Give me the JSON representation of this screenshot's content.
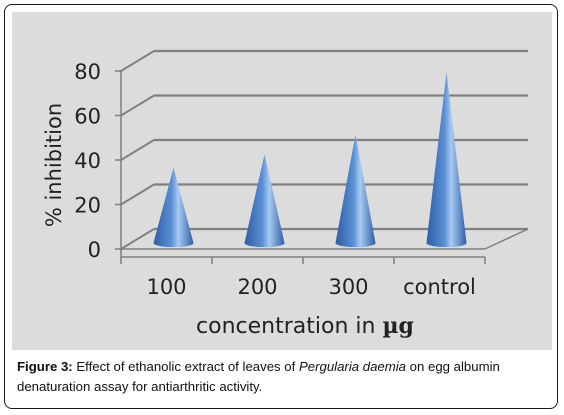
{
  "chart_data": {
    "type": "bar",
    "mark_shape": "cone",
    "categories": [
      "100",
      "200",
      "300",
      "control"
    ],
    "values": [
      33,
      39,
      48,
      76
    ],
    "xlabel": "concentration in",
    "xlabel_unit": "µg",
    "ylabel": "% inhibition",
    "ylim": [
      0,
      80
    ],
    "yticks": [
      0,
      20,
      40,
      60,
      80
    ],
    "grid": true,
    "legend": "none",
    "colors": {
      "cone_dark": "#2e5ea6",
      "cone_mid": "#4f81bd",
      "cone_light": "#9cc0ec",
      "grid": "#7f7f7f",
      "plot_background": "#dcdcdc"
    }
  },
  "caption": {
    "figure_label": "Figure 3:",
    "text_before": " Effect of ethanolic extract of leaves of ",
    "species": "Pergularia daemia",
    "text_after": " on egg albumin denaturation assay for antiarthritic activity."
  }
}
